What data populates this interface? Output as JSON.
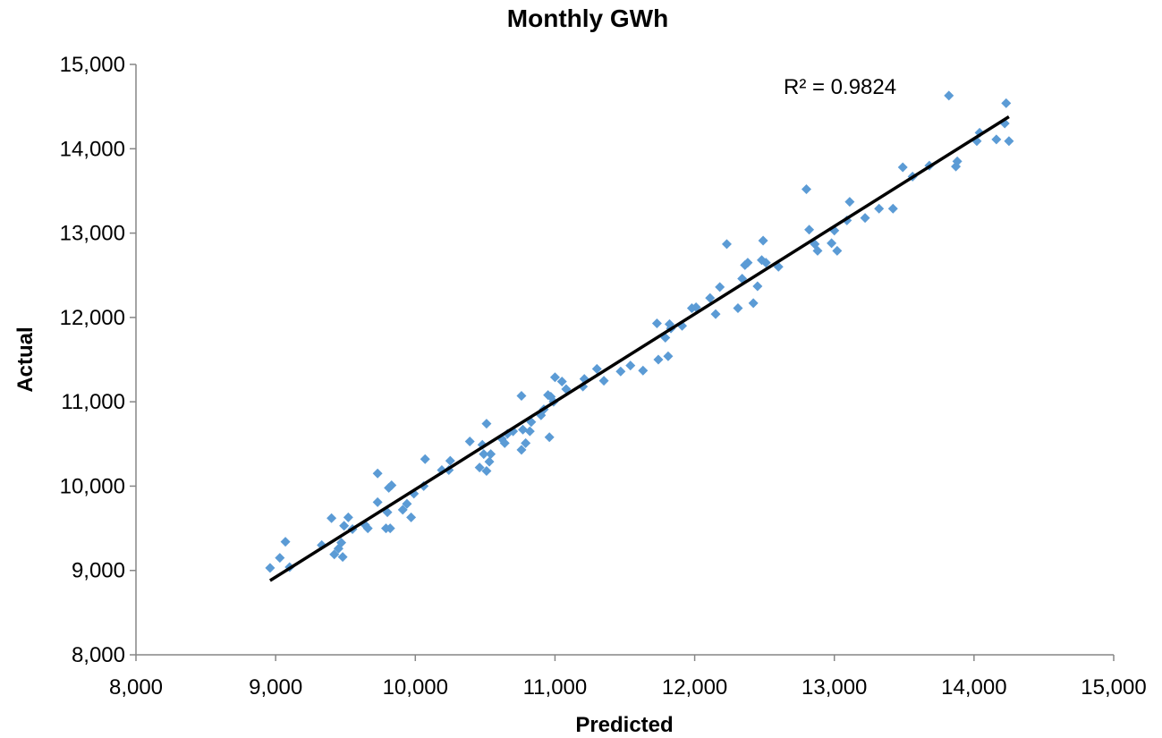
{
  "chart_data": {
    "type": "scatter",
    "title": "Monthly GWh",
    "xlabel": "Predicted",
    "ylabel": "Actual",
    "xlim": [
      8000,
      15000
    ],
    "ylim": [
      8000,
      15000
    ],
    "xticks": [
      8000,
      9000,
      10000,
      11000,
      12000,
      13000,
      14000,
      15000
    ],
    "yticks": [
      8000,
      9000,
      10000,
      11000,
      12000,
      13000,
      14000,
      15000
    ],
    "xtick_labels": [
      "8,000",
      "9,000",
      "10,000",
      "11,000",
      "12,000",
      "13,000",
      "14,000",
      "15,000"
    ],
    "ytick_labels": [
      "8,000",
      "9,000",
      "10,000",
      "11,000",
      "12,000",
      "13,000",
      "14,000",
      "15,000"
    ],
    "grid": false,
    "annotation": "R² = 0.9824",
    "marker_color": "#5B9BD5",
    "trendline_color": "#000000",
    "trendline": {
      "x": [
        8960,
        14250
      ],
      "y": [
        8880,
        14380
      ]
    },
    "points": [
      [
        8960,
        9030
      ],
      [
        9030,
        9150
      ],
      [
        9070,
        9340
      ],
      [
        9100,
        9040
      ],
      [
        9330,
        9300
      ],
      [
        9400,
        9620
      ],
      [
        9420,
        9190
      ],
      [
        9450,
        9260
      ],
      [
        9470,
        9330
      ],
      [
        9480,
        9160
      ],
      [
        9490,
        9530
      ],
      [
        9520,
        9630
      ],
      [
        9550,
        9490
      ],
      [
        9640,
        9540
      ],
      [
        9660,
        9500
      ],
      [
        9730,
        10150
      ],
      [
        9730,
        9810
      ],
      [
        9790,
        9500
      ],
      [
        9800,
        9690
      ],
      [
        9810,
        9980
      ],
      [
        9820,
        9500
      ],
      [
        9830,
        10010
      ],
      [
        9910,
        9720
      ],
      [
        9940,
        9790
      ],
      [
        9970,
        9630
      ],
      [
        9990,
        9910
      ],
      [
        10060,
        10000
      ],
      [
        10070,
        10320
      ],
      [
        10190,
        10190
      ],
      [
        10240,
        10190
      ],
      [
        10250,
        10300
      ],
      [
        10390,
        10530
      ],
      [
        10460,
        10220
      ],
      [
        10480,
        10490
      ],
      [
        10490,
        10380
      ],
      [
        10510,
        10180
      ],
      [
        10510,
        10740
      ],
      [
        10530,
        10290
      ],
      [
        10540,
        10380
      ],
      [
        10620,
        10560
      ],
      [
        10640,
        10510
      ],
      [
        10660,
        10620
      ],
      [
        10700,
        10650
      ],
      [
        10760,
        11070
      ],
      [
        10760,
        10430
      ],
      [
        10770,
        10670
      ],
      [
        10790,
        10510
      ],
      [
        10820,
        10650
      ],
      [
        10830,
        10760
      ],
      [
        10900,
        10840
      ],
      [
        10920,
        10910
      ],
      [
        10950,
        11080
      ],
      [
        10960,
        10580
      ],
      [
        10970,
        11060
      ],
      [
        10990,
        11000
      ],
      [
        11000,
        11290
      ],
      [
        11050,
        11240
      ],
      [
        11080,
        11150
      ],
      [
        11200,
        11180
      ],
      [
        11210,
        11270
      ],
      [
        11300,
        11390
      ],
      [
        11350,
        11250
      ],
      [
        11470,
        11360
      ],
      [
        11540,
        11430
      ],
      [
        11630,
        11370
      ],
      [
        11730,
        11930
      ],
      [
        11740,
        11500
      ],
      [
        11790,
        11760
      ],
      [
        11810,
        11540
      ],
      [
        11820,
        11920
      ],
      [
        11830,
        11870
      ],
      [
        11910,
        11900
      ],
      [
        11980,
        12110
      ],
      [
        12010,
        12120
      ],
      [
        12110,
        12230
      ],
      [
        12150,
        12040
      ],
      [
        12180,
        12360
      ],
      [
        12230,
        12870
      ],
      [
        12310,
        12110
      ],
      [
        12340,
        12460
      ],
      [
        12360,
        12620
      ],
      [
        12380,
        12650
      ],
      [
        12420,
        12170
      ],
      [
        12450,
        12370
      ],
      [
        12480,
        12680
      ],
      [
        12490,
        12910
      ],
      [
        12510,
        12650
      ],
      [
        12600,
        12600
      ],
      [
        12800,
        13520
      ],
      [
        12820,
        13040
      ],
      [
        12860,
        12870
      ],
      [
        12880,
        12790
      ],
      [
        12980,
        12880
      ],
      [
        13000,
        13030
      ],
      [
        13020,
        12790
      ],
      [
        13090,
        13150
      ],
      [
        13110,
        13370
      ],
      [
        13220,
        13180
      ],
      [
        13320,
        13290
      ],
      [
        13420,
        13290
      ],
      [
        13490,
        13780
      ],
      [
        13560,
        13670
      ],
      [
        13680,
        13800
      ],
      [
        13820,
        14630
      ],
      [
        13870,
        13790
      ],
      [
        13880,
        13850
      ],
      [
        14020,
        14090
      ],
      [
        14040,
        14190
      ],
      [
        14160,
        14110
      ],
      [
        14220,
        14300
      ],
      [
        14230,
        14540
      ],
      [
        14250,
        14090
      ]
    ]
  }
}
